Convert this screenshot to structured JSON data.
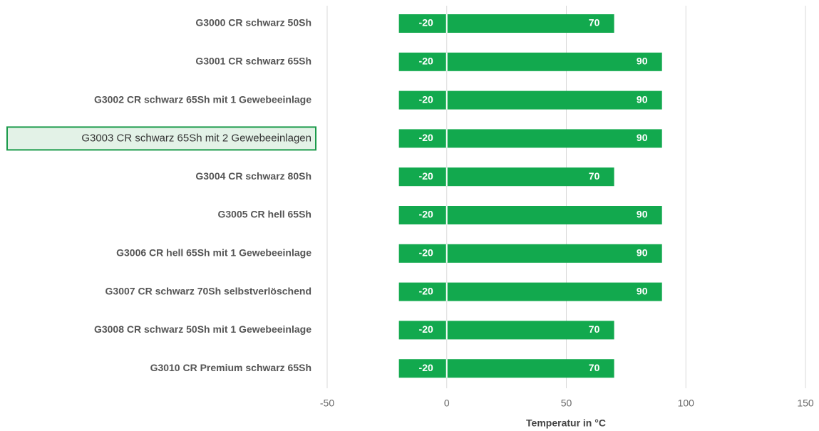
{
  "chart_data": {
    "type": "floating_bar",
    "x_label": "Temperatur in °C",
    "categories": [
      "G3000 CR schwarz 50Sh",
      "G3001 CR schwarz 65Sh",
      "G3002 CR schwarz 65Sh mit 1 Gewebeeinlage",
      "G3003 CR schwarz 65Sh mit 2 Gewebeeinlagen",
      "G3004 CR schwarz 80Sh",
      "G3005 CR hell 65Sh",
      "G3006 CR hell 65Sh mit 1 Gewebeeinlage",
      "G3007 CR schwarz 70Sh selbstverlöschend",
      "G3008 CR schwarz 50Sh mit 1 Gewebeeinlage",
      "G3010 CR Premium schwarz 65Sh"
    ],
    "low": [
      -20,
      -20,
      -20,
      -20,
      -20,
      -20,
      -20,
      -20,
      -20,
      -20
    ],
    "high": [
      70,
      90,
      90,
      90,
      70,
      90,
      90,
      90,
      70,
      70
    ],
    "color": "#12a94e",
    "highlighted_category": 3,
    "xlim": [
      -50,
      150
    ],
    "xticks": [
      -50,
      0,
      50,
      100,
      150
    ],
    "grid": true
  }
}
